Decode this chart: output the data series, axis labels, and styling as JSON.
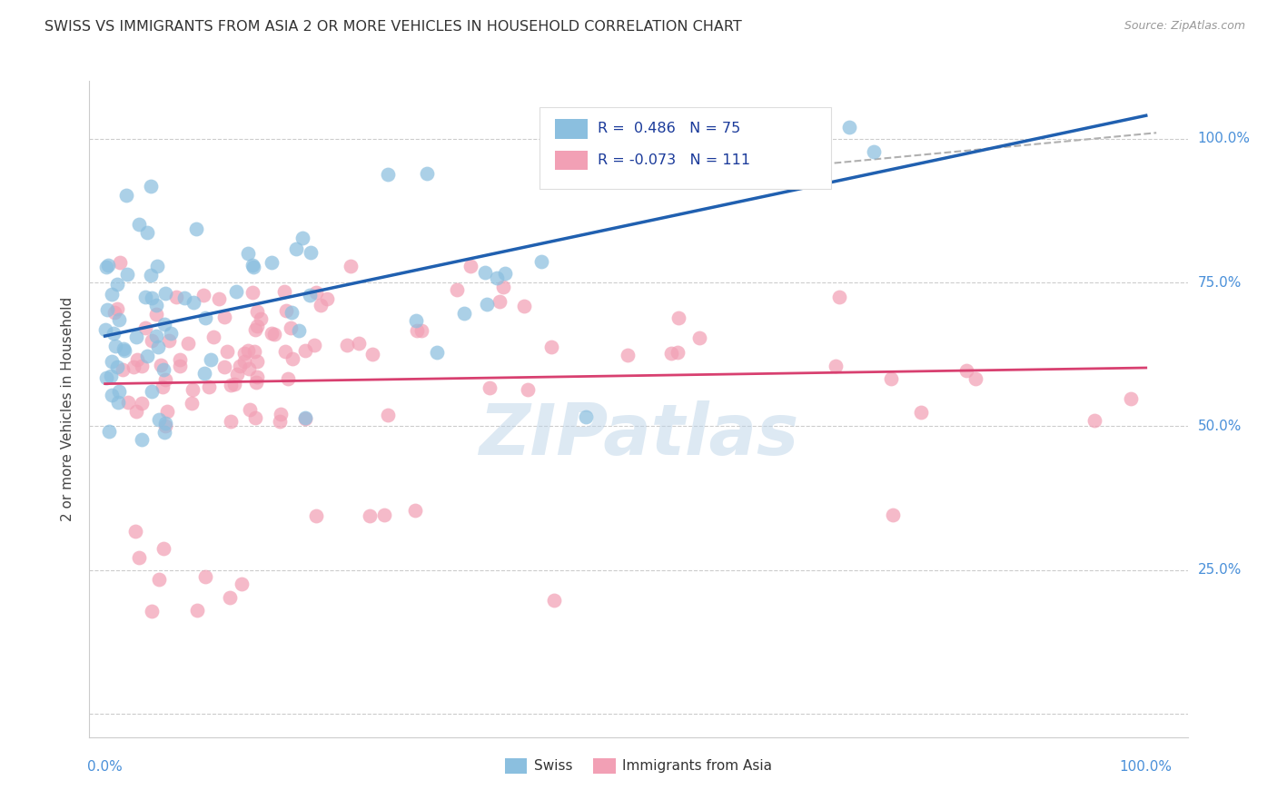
{
  "title": "SWISS VS IMMIGRANTS FROM ASIA 2 OR MORE VEHICLES IN HOUSEHOLD CORRELATION CHART",
  "source": "Source: ZipAtlas.com",
  "ylabel": "2 or more Vehicles in Household",
  "watermark": "ZIPatlas",
  "swiss_color": "#8BBFDF",
  "asia_color": "#F2A0B5",
  "swiss_line_color": "#2060B0",
  "asia_line_color": "#D84070",
  "dashed_line_color": "#B0B0B0",
  "background_color": "#FFFFFF",
  "label_color": "#4A90D9",
  "title_color": "#333333",
  "source_color": "#999999",
  "legend_text_color": "#1A3A9A",
  "swiss_r": 0.486,
  "swiss_n": 75,
  "asia_r": -0.073,
  "asia_n": 111,
  "seed": 12345
}
